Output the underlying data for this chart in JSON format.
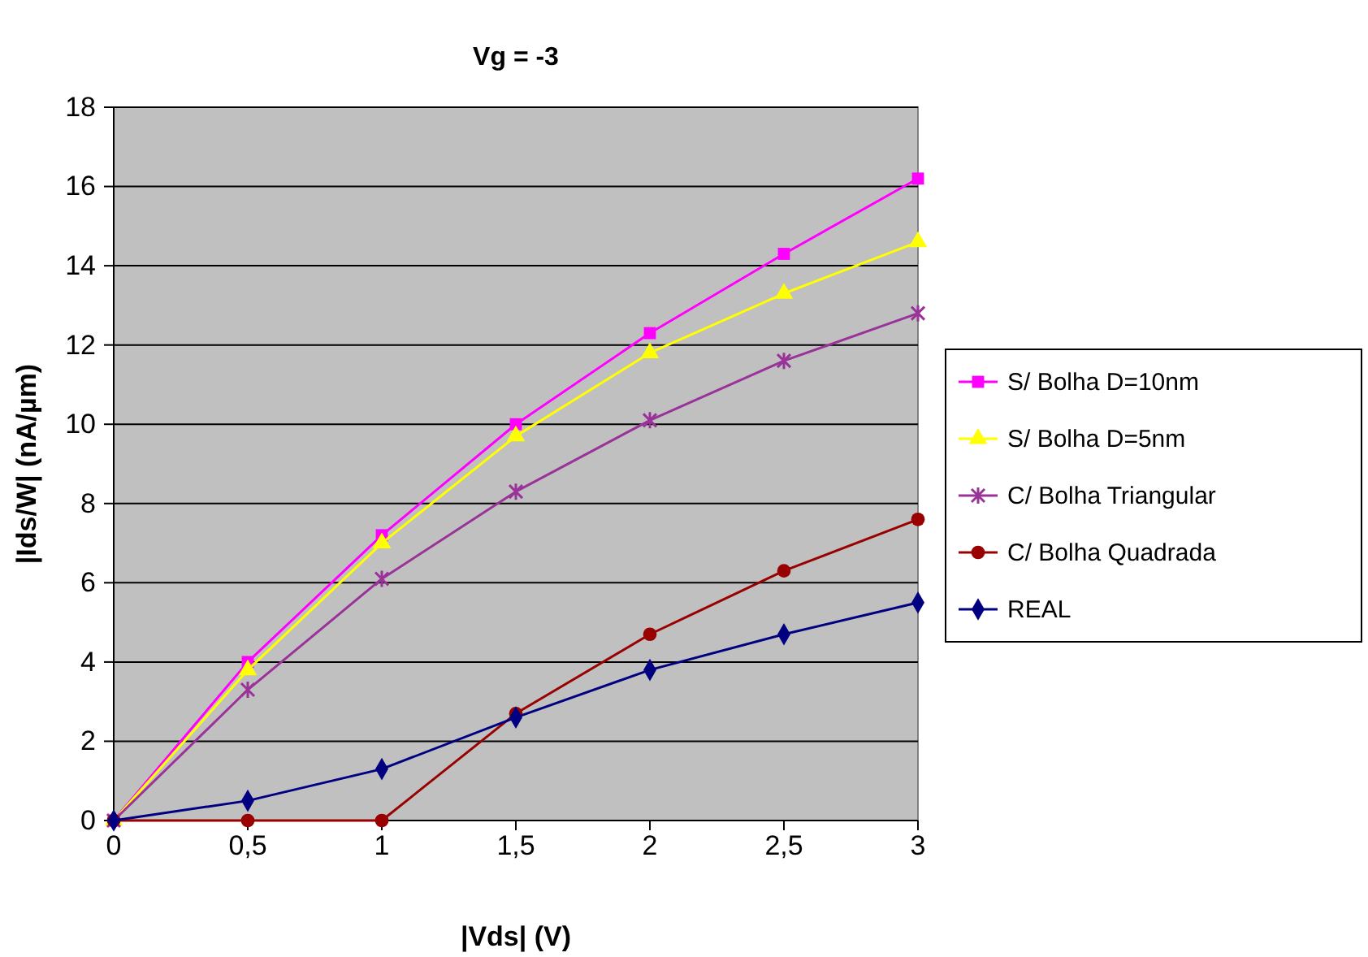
{
  "chart_data": {
    "type": "line",
    "title": "Vg = -3",
    "xlabel": "|Vds| (V)",
    "ylabel": "|Ids/W| (nA/µm)",
    "x": [
      0,
      0.5,
      1,
      1.5,
      2,
      2.5,
      3
    ],
    "xlim": [
      0,
      3
    ],
    "xticks": [
      0,
      {
        "value": 0.5,
        "label": "0,5"
      },
      1,
      {
        "value": 1.5,
        "label": "1,5"
      },
      2,
      {
        "value": 2.5,
        "label": "2,5"
      },
      3
    ],
    "ylim": [
      0,
      18
    ],
    "yticks": [
      0,
      2,
      4,
      6,
      8,
      10,
      12,
      14,
      16,
      18
    ],
    "grid": "y",
    "legend": "right",
    "series": [
      {
        "name": "S/ Bolha D=10nm",
        "color": "#ff00ff",
        "marker": "square",
        "values": [
          0,
          4.0,
          7.2,
          10.0,
          12.3,
          14.3,
          16.2
        ]
      },
      {
        "name": "S/ Bolha D=5nm",
        "color": "#ffff00",
        "marker": "triangle",
        "values": [
          0,
          3.8,
          7.0,
          9.7,
          11.8,
          13.3,
          14.6
        ]
      },
      {
        "name": "C/ Bolha Triangular",
        "color": "#993399",
        "marker": "cross",
        "values": [
          0,
          3.3,
          6.1,
          8.3,
          10.1,
          11.6,
          12.8
        ]
      },
      {
        "name": "C/ Bolha Quadrada",
        "color": "#990000",
        "marker": "circle",
        "values": [
          0,
          0,
          0,
          2.7,
          4.7,
          6.3,
          7.6
        ]
      },
      {
        "name": "REAL",
        "color": "#000080",
        "marker": "diamond",
        "values": [
          0,
          0.5,
          1.3,
          2.6,
          3.8,
          4.7,
          5.5
        ]
      }
    ]
  }
}
